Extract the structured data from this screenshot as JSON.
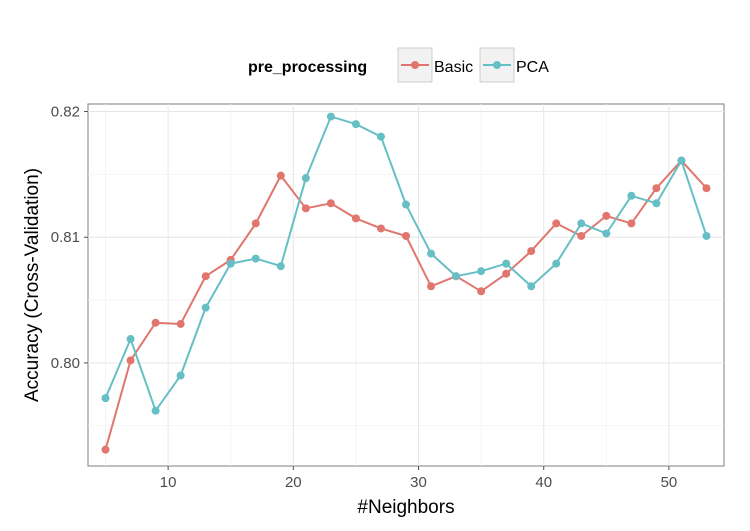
{
  "chart_data": {
    "type": "line",
    "xlabel": "#Neighbors",
    "ylabel": "Accuracy (Cross-Validation)",
    "xlim": [
      3.6,
      54.4
    ],
    "ylim": [
      0.7918,
      0.8206
    ],
    "x_ticks": [
      10,
      20,
      30,
      40,
      50
    ],
    "x_tick_labels": [
      "10",
      "20",
      "30",
      "40",
      "50"
    ],
    "y_ticks": [
      0.8,
      0.81,
      0.82
    ],
    "y_tick_labels": [
      "0.80",
      "0.81",
      "0.82"
    ],
    "grid": true,
    "legend": {
      "title": "pre_processing",
      "position": "top"
    },
    "x": [
      5,
      7,
      9,
      11,
      13,
      15,
      17,
      19,
      21,
      23,
      25,
      27,
      29,
      31,
      33,
      35,
      37,
      39,
      41,
      43,
      45,
      47,
      49,
      51,
      53
    ],
    "series": [
      {
        "name": "Basic",
        "color": "#e0766e",
        "values": [
          0.7931,
          0.8002,
          0.8032,
          0.8031,
          0.8069,
          0.8082,
          0.8111,
          0.8149,
          0.8123,
          0.8127,
          0.8115,
          0.8107,
          0.8101,
          0.8061,
          0.8069,
          0.8057,
          0.8071,
          0.8089,
          0.8111,
          0.8101,
          0.8117,
          0.8111,
          0.8139,
          0.8161,
          0.8139
        ]
      },
      {
        "name": "PCA",
        "color": "#66bfc5",
        "values": [
          0.7972,
          0.8019,
          0.7962,
          0.799,
          0.8044,
          0.8079,
          0.8083,
          0.8077,
          0.8147,
          0.8196,
          0.819,
          0.818,
          0.8126,
          0.8087,
          0.8069,
          0.8073,
          0.8079,
          0.8061,
          0.8079,
          0.8111,
          0.8103,
          0.8133,
          0.8127,
          0.8161,
          0.8101
        ]
      }
    ]
  }
}
